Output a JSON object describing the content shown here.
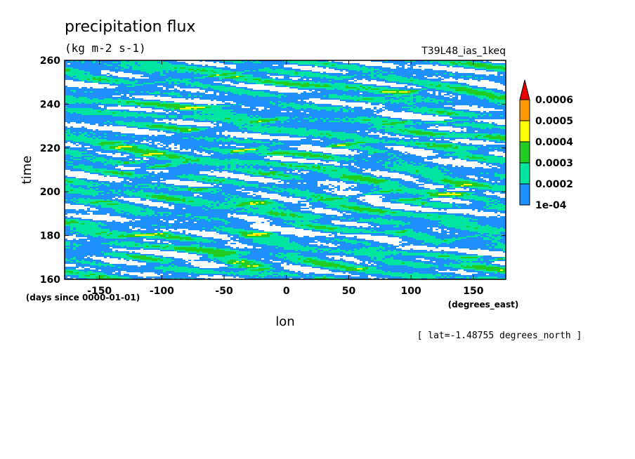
{
  "chart_data": {
    "type": "heatmap",
    "title": "precipitation flux",
    "units": "(kg m-2 s-1)",
    "run_label": "T39L48_ias_1keq",
    "xlabel": "lon",
    "x_units": "(degrees_east)",
    "ylabel": "time",
    "y_units": "(days since 0000-01-01)",
    "footnote": "[ lat=-1.48755 degrees_north ]",
    "xlim": [
      -178,
      176
    ],
    "ylim": [
      160,
      260
    ],
    "x_ticks": [
      -150,
      -100,
      -50,
      0,
      50,
      100,
      150
    ],
    "y_ticks": [
      160,
      180,
      200,
      220,
      240,
      260
    ],
    "x_tick_labels": [
      "-150",
      "-100",
      "-50",
      "0",
      "50",
      "100",
      "150"
    ],
    "y_tick_labels": [
      "160",
      "180",
      "200",
      "220",
      "240",
      "260"
    ],
    "colorbar": {
      "levels": [
        0.0001,
        0.0002,
        0.0003,
        0.0004,
        0.0005,
        0.0006
      ],
      "labels": [
        "1e-04",
        "0.0002",
        "0.0003",
        "0.0004",
        "0.0005",
        "0.0006"
      ],
      "colors": [
        "#1e90ff",
        "#00e6a0",
        "#22cc22",
        "#ffff00",
        "#ff9900",
        "#e60000"
      ],
      "extend": "max"
    },
    "description_colors": {
      "below_min": "#ffffff"
    }
  }
}
